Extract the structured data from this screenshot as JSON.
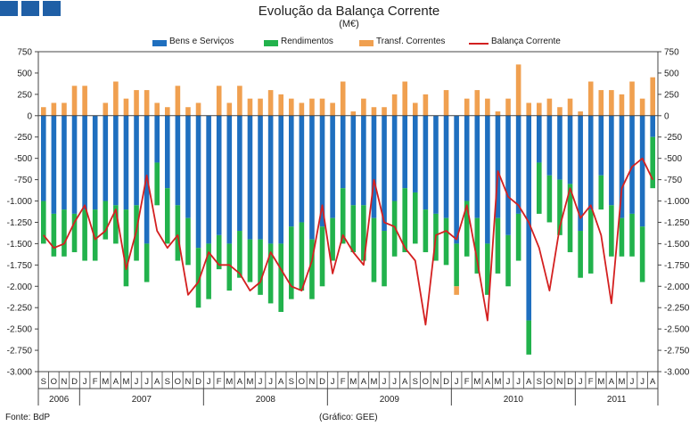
{
  "header": {
    "title": "Evolução da Balança Corrente",
    "unit": "(M€)",
    "source": "Fonte: BdP",
    "credit": "(Gráfico: GEE)"
  },
  "colors": {
    "goods_services": "#1f6fbf",
    "income": "#22b24c",
    "transfers": "#f0a050",
    "balance": "#d42020",
    "logo": "#1f5fa6"
  },
  "chart_data": {
    "type": "bar",
    "stacked": true,
    "title": "Evolução da Balança Corrente",
    "subtitle": "(M€)",
    "xlabel": "",
    "ylabel": "",
    "ylim": [
      -3000,
      750
    ],
    "yticks": [
      750,
      500,
      250,
      0,
      -250,
      -500,
      -750,
      -1000,
      -1250,
      -1500,
      -1750,
      -2000,
      -2250,
      -2500,
      -2750,
      -3000
    ],
    "ytick_labels": [
      "750",
      "500",
      "250",
      "0",
      "-250",
      "-500",
      "-750",
      "-1.000",
      "-1.250",
      "-1.500",
      "-1.750",
      "-2.000",
      "-2.250",
      "-2.500",
      "-2.750",
      "-3.000"
    ],
    "grid": false,
    "legend_position": "top",
    "categories": [
      "S",
      "O",
      "N",
      "D",
      "J",
      "F",
      "M",
      "A",
      "M",
      "J",
      "J",
      "A",
      "S",
      "O",
      "N",
      "D",
      "J",
      "F",
      "M",
      "A",
      "M",
      "J",
      "J",
      "A",
      "S",
      "O",
      "N",
      "D",
      "J",
      "F",
      "M",
      "A",
      "M",
      "J",
      "J",
      "A",
      "S",
      "O",
      "N",
      "D",
      "J",
      "F",
      "M",
      "A",
      "M",
      "J",
      "J",
      "A",
      "S",
      "O",
      "N",
      "D",
      "J",
      "F",
      "M",
      "A",
      "M",
      "J",
      "J",
      "A"
    ],
    "years": [
      {
        "label": "2006",
        "start": 0,
        "count": 4
      },
      {
        "label": "2007",
        "start": 4,
        "count": 12
      },
      {
        "label": "2008",
        "start": 16,
        "count": 12
      },
      {
        "label": "2009",
        "start": 28,
        "count": 12
      },
      {
        "label": "2010",
        "start": 40,
        "count": 12
      },
      {
        "label": "2011",
        "start": 52,
        "count": 8
      }
    ],
    "series": [
      {
        "name": "Bens e Serviços",
        "kind": "bar",
        "values": [
          -1000,
          -1150,
          -1100,
          -1150,
          -1100,
          -1100,
          -1000,
          -1050,
          -1100,
          -1050,
          -1500,
          -550,
          -850,
          -1050,
          -1200,
          -1550,
          -1500,
          -1400,
          -1500,
          -1350,
          -1450,
          -1450,
          -1500,
          -1500,
          -1300,
          -1250,
          -1450,
          -1300,
          -1200,
          -850,
          -1050,
          -1050,
          -1200,
          -1350,
          -1000,
          -850,
          -900,
          -1100,
          -1150,
          -1200,
          -1500,
          -1000,
          -1200,
          -1500,
          -1200,
          -1400,
          -1150,
          -2400,
          -550,
          -700,
          -750,
          -800,
          -1350,
          -1100,
          -700,
          -1050,
          -1200,
          -1150,
          -1300,
          -250
        ]
      },
      {
        "name": "Rendimentos",
        "kind": "bar",
        "values": [
          -500,
          -500,
          -550,
          -450,
          -600,
          -600,
          -450,
          -450,
          -900,
          -650,
          -450,
          -500,
          -650,
          -650,
          -550,
          -700,
          -650,
          -400,
          -550,
          -550,
          -500,
          -650,
          -700,
          -800,
          -850,
          -800,
          -700,
          -700,
          -500,
          -650,
          -550,
          -650,
          -750,
          -650,
          -650,
          -750,
          -600,
          -500,
          -550,
          -550,
          -500,
          -650,
          -650,
          -600,
          -650,
          -600,
          -550,
          -400,
          -600,
          -550,
          -650,
          -800,
          -550,
          -750,
          -400,
          -600,
          -450,
          -500,
          -650,
          -600
        ]
      },
      {
        "name": "Transf. Correntes",
        "kind": "bar",
        "values": [
          100,
          150,
          150,
          350,
          350,
          0,
          150,
          400,
          200,
          300,
          300,
          150,
          100,
          350,
          100,
          150,
          0,
          350,
          150,
          350,
          200,
          200,
          300,
          250,
          200,
          150,
          200,
          200,
          150,
          400,
          50,
          200,
          100,
          100,
          250,
          400,
          150,
          250,
          0,
          300,
          -100,
          200,
          300,
          200,
          50,
          200,
          600,
          150,
          150,
          200,
          100,
          200,
          50,
          400,
          300,
          300,
          250,
          400,
          200,
          450
        ]
      },
      {
        "name": "Balança Corrente",
        "kind": "line",
        "values": [
          -1400,
          -1550,
          -1500,
          -1250,
          -1050,
          -1450,
          -1350,
          -1100,
          -1800,
          -1350,
          -700,
          -1350,
          -1550,
          -1400,
          -2100,
          -1950,
          -1600,
          -1750,
          -1750,
          -1850,
          -2050,
          -1950,
          -1600,
          -1800,
          -2000,
          -2050,
          -1700,
          -1050,
          -1850,
          -1400,
          -1600,
          -1750,
          -750,
          -1250,
          -1300,
          -1550,
          -1700,
          -2450,
          -1400,
          -1350,
          -1450,
          -1050,
          -1700,
          -2400,
          -650,
          -950,
          -1050,
          -1250,
          -1550,
          -2050,
          -1300,
          -850,
          -1200,
          -1050,
          -1400,
          -2200,
          -850,
          -600,
          -500,
          -750
        ]
      }
    ]
  }
}
